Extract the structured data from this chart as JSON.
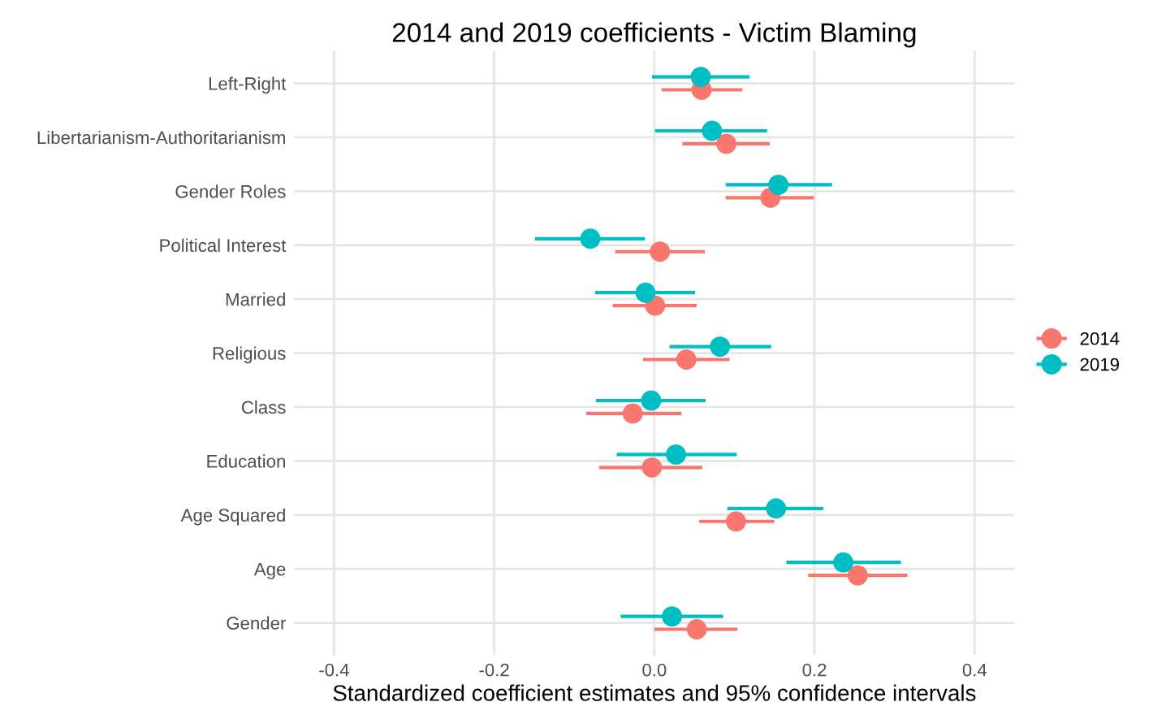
{
  "chart_data": {
    "type": "scatter",
    "orientation": "horizontal",
    "title": "2014 and 2019 coefficients - Victim Blaming",
    "xlabel": "Standardized coefficient estimates and 95% confidence intervals",
    "categories": [
      "Left-Right",
      "Libertarianism-Authoritarianism",
      "Gender Roles",
      "Political Interest",
      "Married",
      "Religious",
      "Class",
      "Education",
      "Age Squared",
      "Age",
      "Gender"
    ],
    "series": [
      {
        "name": "2014",
        "color": "#f8766d",
        "values": [
          0.059,
          0.09,
          0.145,
          0.007,
          0.001,
          0.04,
          -0.027,
          -0.003,
          0.102,
          0.254,
          0.053
        ],
        "errors": [
          [
            0.009,
            0.11
          ],
          [
            0.035,
            0.144
          ],
          [
            0.089,
            0.199
          ],
          [
            -0.049,
            0.063
          ],
          [
            -0.052,
            0.053
          ],
          [
            -0.014,
            0.094
          ],
          [
            -0.085,
            0.034
          ],
          [
            -0.069,
            0.06
          ],
          [
            0.056,
            0.15
          ],
          [
            0.192,
            0.316
          ],
          [
            0.0,
            0.104
          ]
        ]
      },
      {
        "name": "2019",
        "color": "#00bfc4",
        "values": [
          0.058,
          0.072,
          0.155,
          -0.08,
          -0.011,
          0.082,
          -0.004,
          0.027,
          0.152,
          0.236,
          0.022
        ],
        "errors": [
          [
            -0.003,
            0.119
          ],
          [
            0.001,
            0.141
          ],
          [
            0.089,
            0.222
          ],
          [
            -0.149,
            -0.012
          ],
          [
            -0.074,
            0.051
          ],
          [
            0.019,
            0.146
          ],
          [
            -0.073,
            0.064
          ],
          [
            -0.047,
            0.103
          ],
          [
            0.091,
            0.211
          ],
          [
            0.165,
            0.308
          ],
          [
            -0.042,
            0.086
          ]
        ]
      }
    ],
    "xlim": [
      -0.45,
      0.45
    ],
    "xticks": [
      -0.4,
      -0.2,
      {
        "value": 0,
        "label": "0.0"
      },
      0.2,
      0.4
    ],
    "grid": true,
    "legend": "right",
    "marker": "circle"
  }
}
